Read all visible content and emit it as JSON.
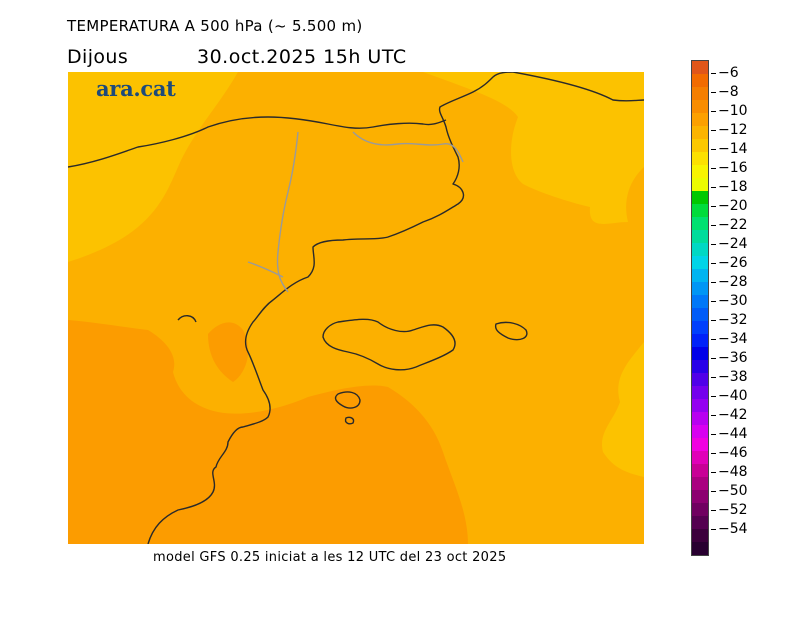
{
  "header": {
    "title": "TEMPERATURA A 500 hPa (~ 5.500 m)",
    "day": "Dijous",
    "datetime": "30.oct.2025  15h  UTC"
  },
  "logo": "ara.cat",
  "footer": "model GFS 0.25 iniciat a les 12 UTC del 23 oct 2025",
  "map": {
    "field": "temperature_500hPa",
    "unit": "°C",
    "region": "Catalonia, Balearic Islands",
    "dominant_band_colors": [
      "#fcc200",
      "#fcaa00",
      "#fc9600"
    ]
  },
  "colorbar": {
    "labels": [
      "-6",
      "-8",
      "-10",
      "-12",
      "-14",
      "-16",
      "-18",
      "-20",
      "-22",
      "-24",
      "-26",
      "-28",
      "-30",
      "-32",
      "-34",
      "-36",
      "-38",
      "-40",
      "-42",
      "-44",
      "-46",
      "-48",
      "-50",
      "-52",
      "-54"
    ],
    "colors": [
      "#e0561a",
      "#f26b00",
      "#f57e00",
      "#f98d00",
      "#fca000",
      "#fcb400",
      "#fcc800",
      "#fce000",
      "#f8f400",
      "#ecfc00",
      "#00c800",
      "#00dc3c",
      "#00e070",
      "#00dc9c",
      "#00d8c4",
      "#00d4e8",
      "#00b4f0",
      "#0096f4",
      "#0078f8",
      "#005cf8",
      "#0040fc",
      "#0022f8",
      "#0000e8",
      "#2800e8",
      "#5000e8",
      "#7400ec",
      "#9400f0",
      "#b800f0",
      "#d800f0",
      "#f000e0",
      "#e000b8",
      "#c80096",
      "#aa0080",
      "#8c0070",
      "#700060",
      "#540050",
      "#3c003c",
      "#280030"
    ]
  }
}
